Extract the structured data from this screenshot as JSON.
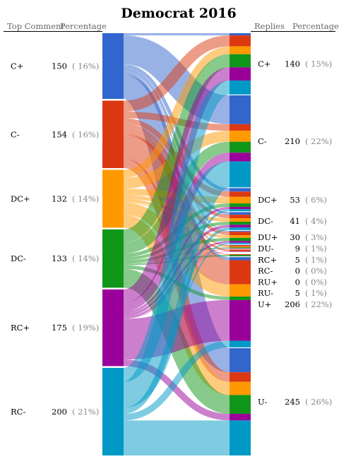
{
  "chart_data": {
    "type": "sankey",
    "title": "Democrat 2016",
    "left_headers": {
      "category": "Top Comment",
      "percentage": "Percentage"
    },
    "right_headers": {
      "category": "Replies",
      "percentage": "Percentage"
    },
    "left_nodes": [
      {
        "label": "C+",
        "count": 150,
        "percent": "( 16%)",
        "color": "#3366cc"
      },
      {
        "label": "C-",
        "count": 154,
        "percent": "( 16%)",
        "color": "#dc3912"
      },
      {
        "label": "DC+",
        "count": 132,
        "percent": "( 14%)",
        "color": "#ff9900"
      },
      {
        "label": "DC-",
        "count": 133,
        "percent": "( 14%)",
        "color": "#109618"
      },
      {
        "label": "RC+",
        "count": 175,
        "percent": "( 19%)",
        "color": "#990099"
      },
      {
        "label": "RC-",
        "count": 200,
        "percent": "( 21%)",
        "color": "#0099c6"
      }
    ],
    "right_nodes": [
      {
        "label": "C+",
        "count": 140,
        "percent": "( 15%)"
      },
      {
        "label": "C-",
        "count": 210,
        "percent": "( 22%)"
      },
      {
        "label": "DC+",
        "count": 53,
        "percent": "( 6%)"
      },
      {
        "label": "DC-",
        "count": 41,
        "percent": "( 4%)"
      },
      {
        "label": "DU+",
        "count": 30,
        "percent": "( 3%)"
      },
      {
        "label": "DU-",
        "count": 9,
        "percent": "( 1%)"
      },
      {
        "label": "RC+",
        "count": 5,
        "percent": "( 1%)"
      },
      {
        "label": "RC-",
        "count": 0,
        "percent": "( 0%)"
      },
      {
        "label": "RU+",
        "count": 0,
        "percent": "( 0%)"
      },
      {
        "label": "RU-",
        "count": 5,
        "percent": "( 1%)"
      },
      {
        "label": "U+",
        "count": 206,
        "percent": "( 22%)"
      },
      {
        "label": "U-",
        "count": 245,
        "percent": "( 26%)"
      }
    ],
    "flows": [
      [
        5,
        66,
        8,
        6,
        2,
        1,
        0,
        0,
        0,
        0,
        7,
        55
      ],
      [
        25,
        15,
        12,
        8,
        8,
        3,
        4,
        0,
        0,
        2,
        55,
        22
      ],
      [
        18,
        25,
        15,
        8,
        6,
        2,
        0,
        0,
        0,
        0,
        28,
        30
      ],
      [
        30,
        25,
        8,
        7,
        7,
        2,
        0,
        0,
        0,
        3,
        8,
        43
      ],
      [
        30,
        20,
        5,
        6,
        4,
        1,
        1,
        0,
        0,
        0,
        93,
        15
      ],
      [
        32,
        59,
        5,
        6,
        3,
        0,
        0,
        0,
        0,
        0,
        15,
        80
      ]
    ],
    "link_opacity": 0.5
  }
}
